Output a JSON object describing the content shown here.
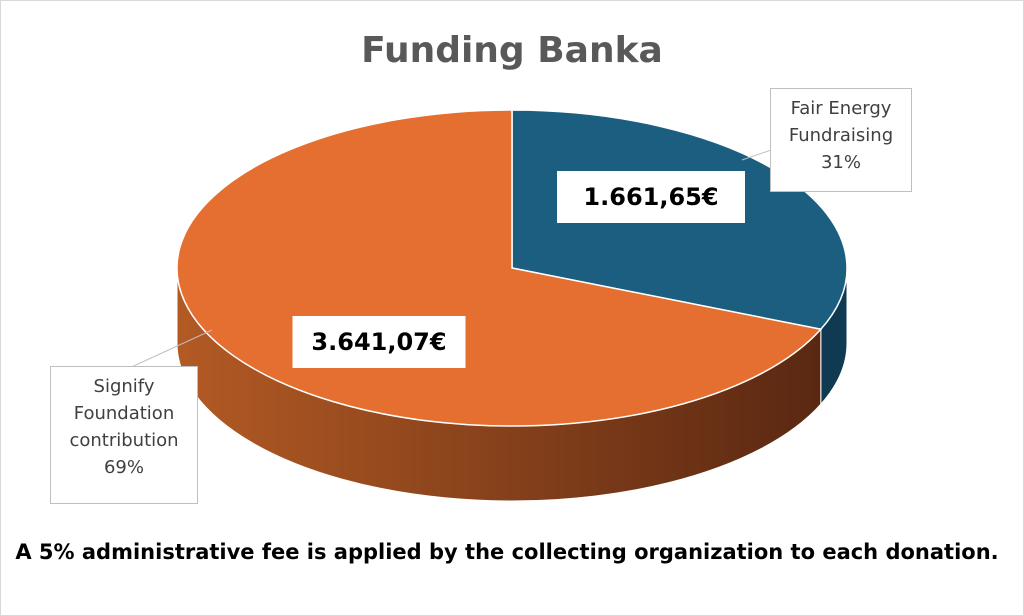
{
  "chart_data": {
    "type": "pie3d",
    "title": "Funding Banka",
    "categories": [
      "Fair Energy Fundraising",
      "Signify Foundation contribution"
    ],
    "values": [
      1661.65,
      3641.07
    ],
    "value_labels": [
      "1.661,65€",
      "3.641,07€"
    ],
    "percent_values": [
      31,
      69
    ],
    "percent_labels": [
      "31%",
      "69%"
    ],
    "colors": [
      "#1b5e80",
      "#e46f30"
    ],
    "side_colors": [
      "#0f3a52",
      "#7a3a18"
    ],
    "annotation": "A 5% administrative fee is applied by the collecting organization to each donation."
  }
}
